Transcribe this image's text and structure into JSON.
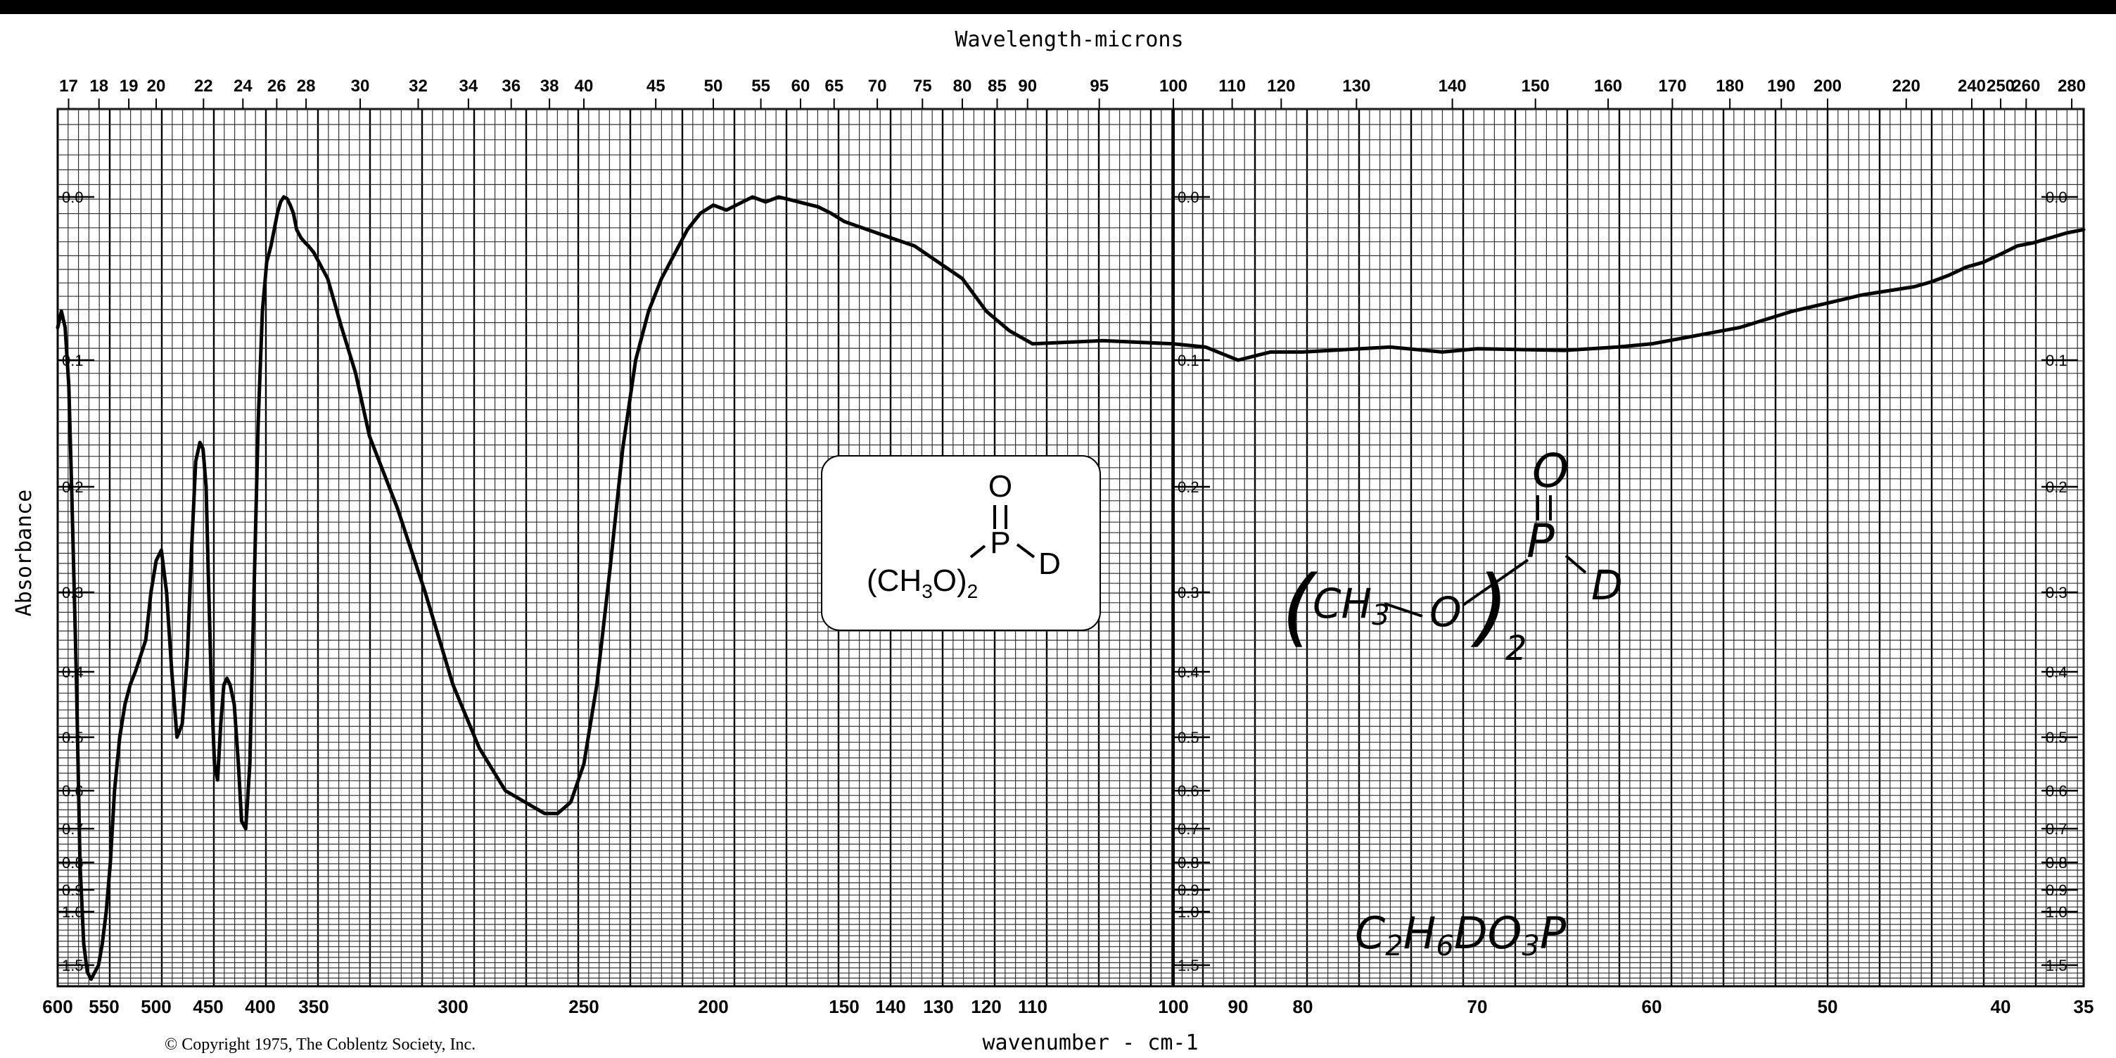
{
  "chart_data": {
    "type": "line",
    "title": "Wavelength-microns",
    "xlabel": "wavenumber - cm-1",
    "ylabel": "Absorbance",
    "copyright": "© Copyright 1975, The Coblentz Society, Inc.",
    "xlim": [
      600,
      35
    ],
    "y_scale": "log-absorbance",
    "grid": true,
    "x_ticks": [
      600,
      550,
      500,
      450,
      400,
      350,
      300,
      250,
      200,
      150,
      140,
      130,
      120,
      110,
      100,
      90,
      80,
      70,
      60,
      50,
      40,
      35
    ],
    "top_ticks": [
      "17",
      "18",
      "19",
      "20",
      "22",
      "24",
      "26",
      "28",
      "30",
      "32",
      "34",
      "36",
      "38",
      "40",
      "45",
      "50",
      "55",
      "60",
      "65",
      "70",
      "75",
      "80",
      "85",
      "90",
      "95",
      "100",
      "110",
      "120",
      "130",
      "140",
      "150",
      "160",
      "170",
      "180",
      "190",
      "200",
      "220",
      "240",
      "250",
      "260",
      "280"
    ],
    "y_ticks": [
      "0.0",
      "0.1",
      "0.2",
      "0.3",
      "0.4",
      "0.5",
      "0.6",
      "0.7",
      "0.8",
      "0.9",
      "1.0",
      "1.5"
    ],
    "series": [
      {
        "x": [
          600,
          596,
          592,
          588,
          585,
          580,
          576,
          572,
          568,
          564,
          560,
          556,
          552,
          548,
          544,
          540,
          535,
          530,
          525,
          520,
          515,
          510,
          505,
          500,
          495,
          490,
          485,
          480,
          475,
          470,
          466,
          462,
          458,
          455,
          452,
          450,
          447,
          444,
          441,
          438,
          435,
          432,
          429,
          425,
          421,
          418,
          414,
          410,
          406,
          402,
          398,
          394,
          390,
          387,
          384,
          381,
          378,
          375,
          372,
          369,
          366,
          362,
          358,
          355,
          350,
          345,
          340,
          335,
          330,
          320,
          310,
          300,
          290,
          280,
          270,
          265,
          260,
          255,
          250,
          245,
          240,
          235,
          230,
          225,
          220,
          215,
          210,
          205,
          200,
          195,
          190,
          185,
          180,
          175,
          170,
          165,
          160,
          155,
          150,
          145,
          140,
          135,
          130,
          125,
          120,
          115,
          110,
          105,
          100,
          95,
          90,
          85,
          80,
          75,
          72,
          70,
          65,
          62,
          60,
          55,
          52,
          50,
          48,
          45,
          44,
          43,
          42,
          41,
          40,
          39,
          38,
          37,
          36,
          35
        ],
        "y": [
          0.08,
          0.07,
          0.08,
          0.12,
          0.2,
          0.4,
          0.8,
          1.3,
          1.6,
          1.7,
          1.6,
          1.5,
          1.3,
          1.0,
          0.8,
          0.6,
          0.5,
          0.45,
          0.42,
          0.4,
          0.38,
          0.36,
          0.3,
          0.27,
          0.26,
          0.3,
          0.4,
          0.5,
          0.48,
          0.38,
          0.26,
          0.18,
          0.165,
          0.17,
          0.2,
          0.28,
          0.42,
          0.55,
          0.58,
          0.48,
          0.42,
          0.41,
          0.42,
          0.45,
          0.55,
          0.68,
          0.7,
          0.55,
          0.3,
          0.15,
          0.07,
          0.04,
          0.03,
          0.02,
          0.01,
          0.003,
          0.0,
          0.001,
          0.005,
          0.01,
          0.02,
          0.025,
          0.028,
          0.03,
          0.034,
          0.05,
          0.08,
          0.11,
          0.16,
          0.22,
          0.3,
          0.42,
          0.52,
          0.6,
          0.64,
          0.66,
          0.66,
          0.63,
          0.55,
          0.42,
          0.28,
          0.17,
          0.1,
          0.07,
          0.05,
          0.035,
          0.02,
          0.01,
          0.005,
          0.008,
          0.004,
          0.0,
          0.003,
          0.0,
          0.002,
          0.004,
          0.006,
          0.01,
          0.015,
          0.02,
          0.025,
          0.03,
          0.04,
          0.05,
          0.07,
          0.082,
          0.09,
          0.088,
          0.09,
          0.092,
          0.1,
          0.095,
          0.095,
          0.092,
          0.095,
          0.093,
          0.094,
          0.092,
          0.09,
          0.08,
          0.07,
          0.065,
          0.06,
          0.055,
          0.052,
          0.048,
          0.043,
          0.04,
          0.035,
          0.03,
          0.028,
          0.025,
          0.022,
          0.02
        ]
      }
    ]
  },
  "structure": {
    "printed_formula": "(CH3O)2P(=O)D",
    "handwritten_structure": "(CH3-O)2P(=O)-D",
    "handwritten_formula": "C2H6DO3P"
  }
}
